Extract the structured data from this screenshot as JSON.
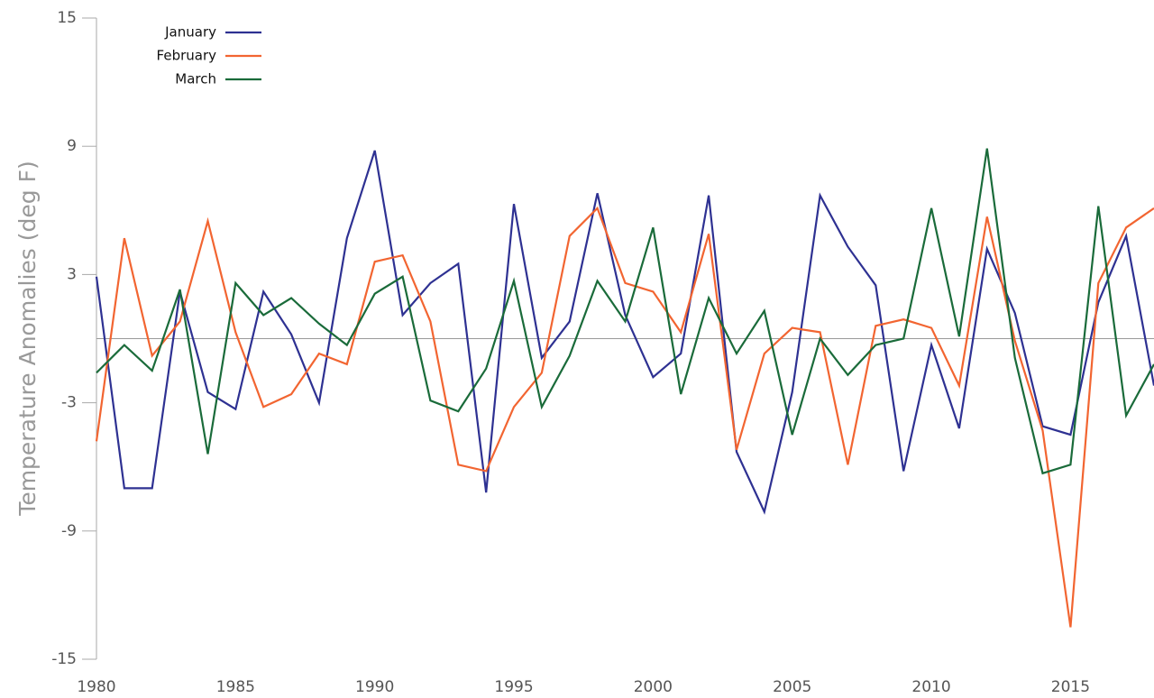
{
  "chart_data": {
    "type": "line",
    "y_label": "Temperature Anomalies (deg F)",
    "x": [
      1980,
      1981,
      1982,
      1983,
      1984,
      1985,
      1986,
      1987,
      1988,
      1989,
      1990,
      1991,
      1992,
      1993,
      1994,
      1995,
      1996,
      1997,
      1998,
      1999,
      2000,
      2001,
      2002,
      2003,
      2004,
      2005,
      2006,
      2007,
      2008,
      2009,
      2010,
      2011,
      2012,
      2013,
      2014,
      2015,
      2016,
      2017,
      2018
    ],
    "series": [
      {
        "name": "January",
        "color": "#2e3192",
        "values": [
          2.9,
          -7.0,
          -7.0,
          2.2,
          -2.5,
          -3.3,
          2.2,
          0.2,
          -3.0,
          4.7,
          8.8,
          1.1,
          2.6,
          3.5,
          -7.2,
          6.3,
          -0.9,
          0.8,
          6.8,
          1.1,
          -1.8,
          -0.7,
          6.7,
          -5.3,
          -8.1,
          -2.5,
          6.7,
          4.3,
          2.5,
          -6.2,
          -0.3,
          -4.2,
          4.2,
          1.2,
          -4.1,
          -4.5,
          1.7,
          4.8,
          -2.2
        ]
      },
      {
        "name": "February",
        "color": "#f26531",
        "values": [
          -4.8,
          4.7,
          -0.8,
          0.8,
          5.5,
          0.3,
          -3.2,
          -2.6,
          -0.7,
          -1.2,
          3.6,
          3.9,
          0.8,
          -5.9,
          -6.2,
          -3.2,
          -1.6,
          4.8,
          6.1,
          2.6,
          2.2,
          0.3,
          4.9,
          -5.2,
          -0.7,
          0.5,
          0.3,
          -5.9,
          0.6,
          0.9,
          0.5,
          -2.2,
          5.7,
          -0.1,
          -4.3,
          -13.5,
          2.6,
          5.2,
          6.1
        ]
      },
      {
        "name": "March",
        "color": "#1a6b3a",
        "values": [
          -1.6,
          -0.3,
          -1.5,
          2.3,
          -5.4,
          2.6,
          1.1,
          1.9,
          0.7,
          -0.3,
          2.1,
          2.9,
          -2.9,
          -3.4,
          -1.4,
          2.7,
          -3.2,
          -0.8,
          2.7,
          0.8,
          5.2,
          -2.6,
          1.9,
          -0.7,
          1.3,
          -4.5,
          0.0,
          -1.7,
          -0.3,
          0.0,
          6.1,
          0.1,
          8.9,
          -0.9,
          -6.3,
          -5.9,
          6.2,
          -3.6,
          -1.2
        ]
      }
    ],
    "xlim": [
      1980,
      2018
    ],
    "xticks": [
      1980,
      1985,
      1990,
      1995,
      2000,
      2005,
      2010,
      2015
    ],
    "ylim": [
      -15,
      15
    ],
    "yticks": [
      -15,
      -9,
      -3,
      3,
      9,
      15
    ],
    "zero_line": true,
    "legend": "top-left"
  }
}
